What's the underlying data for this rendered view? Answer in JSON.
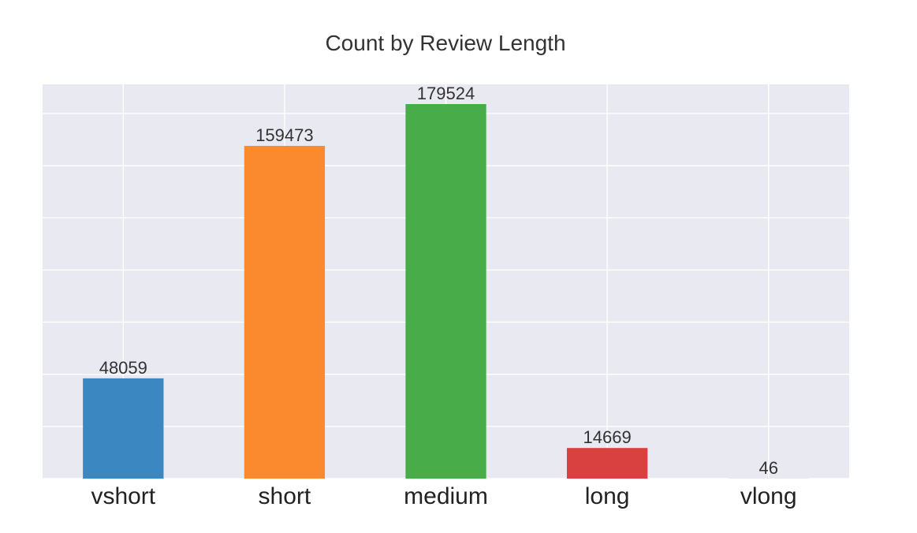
{
  "chart_data": {
    "type": "bar",
    "title": "Count by Review Length",
    "xlabel": "",
    "ylabel": "",
    "categories": [
      "vshort",
      "short",
      "medium",
      "long",
      "vlong"
    ],
    "values": [
      48059,
      159473,
      179524,
      14669,
      46
    ],
    "data_labels": [
      "48059",
      "159473",
      "179524",
      "14669",
      "46"
    ],
    "colors": [
      "#3b87c2",
      "#fb8a2e",
      "#48ad48",
      "#d94141",
      "#8c6bb1"
    ],
    "plot_background": "#e9e9f2",
    "gridline_color": "#ffffff",
    "grid": true,
    "y_ticks_visible": false,
    "ylim": [
      0,
      179524
    ],
    "yticks": [
      0,
      25000,
      50000,
      75000,
      100000,
      125000,
      150000,
      175000
    ]
  }
}
